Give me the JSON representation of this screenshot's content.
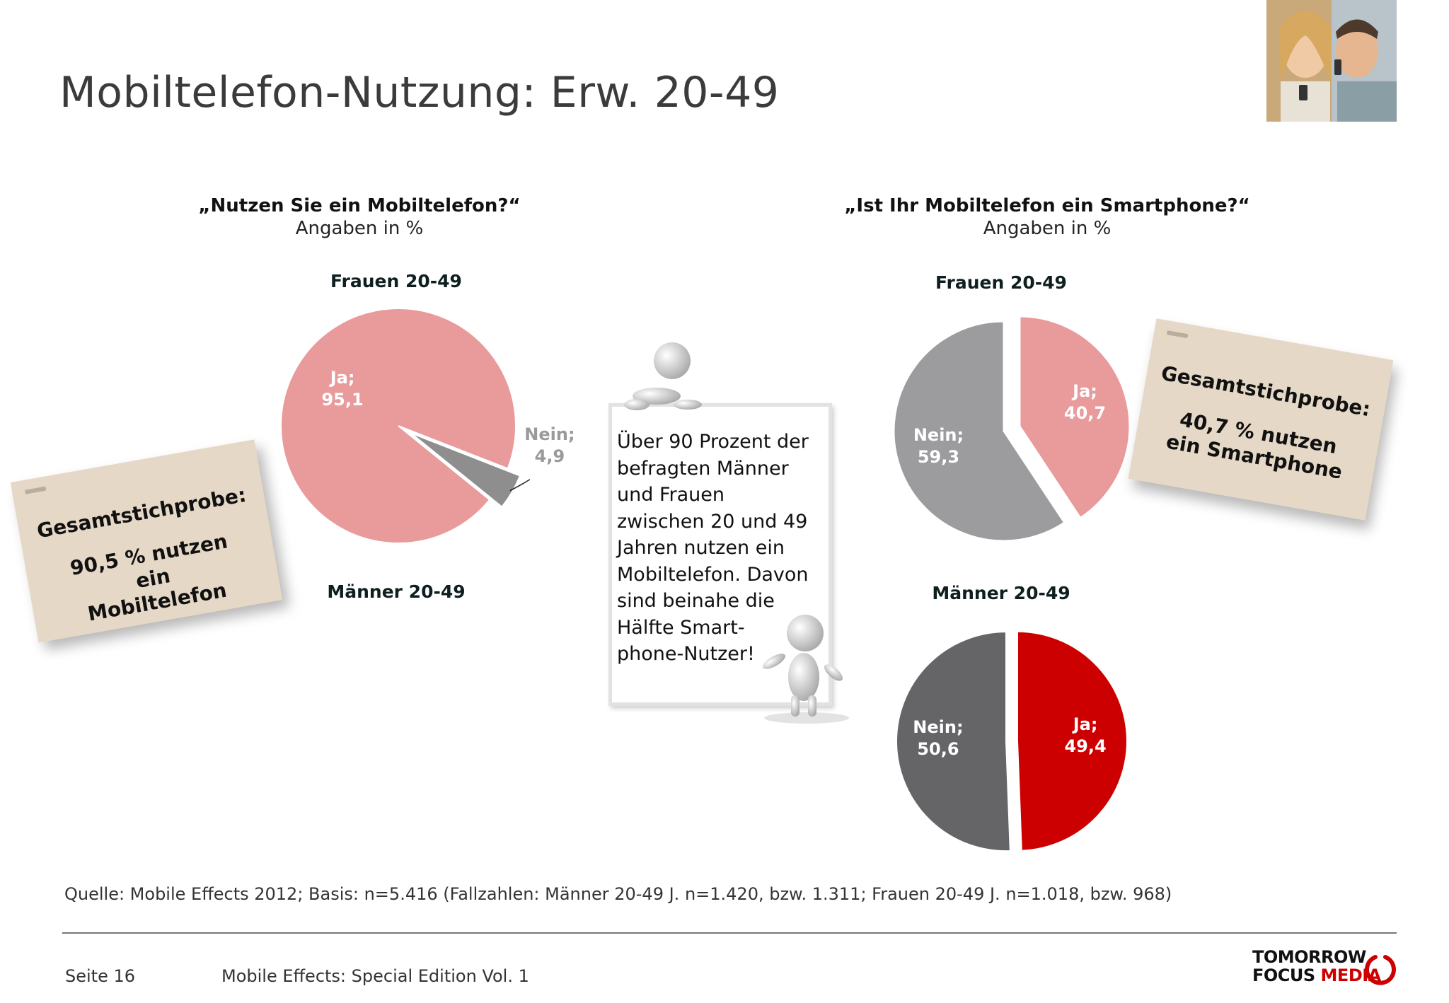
{
  "slide": {
    "title": "Mobiltelefon-Nutzung: Erw. 20-49",
    "photo_icon": "couple-with-phones-photo"
  },
  "left_panel": {
    "question": "„Nutzen Sie ein Mobiltelefon?“",
    "unit_note": "Angaben in %",
    "note": {
      "heading": "Gesamtstichprobe:",
      "body": "90,5 % nutzen ein Mobiltelefon"
    }
  },
  "right_panel": {
    "question": "„Ist Ihr Mobiltelefon ein Smartphone?“",
    "unit_note": "Angaben in %",
    "note": {
      "heading": "Gesamtstichprobe:",
      "body": "40,7 % nutzen ein Smartphone"
    }
  },
  "board": {
    "text": "Über 90 Prozent der\nbefragten Männer\nund Frauen\nzwischen 20 und 49\nJahren nutzen ein\nMobiltelefon. Davon\nsind beinahe die\nHälfte Smart-\nphone-Nutzer!",
    "figure_icon": "3d-figure-icon"
  },
  "chart_data": [
    {
      "id": "mobile-use-women",
      "type": "pie",
      "group_label": "Frauen 20-49",
      "slices": [
        {
          "label": "Ja",
          "display": "Ja;",
          "value": 95.1,
          "value_text": "95,1",
          "color": "#e99a9b"
        },
        {
          "label": "Nein",
          "display": "Nein;",
          "value": 4.9,
          "value_text": "4,9",
          "color": "#8e8e8e"
        }
      ]
    },
    {
      "id": "mobile-use-men",
      "type": "pie",
      "group_label": "Männer 20-49",
      "slices": []
    },
    {
      "id": "smartphone-women",
      "type": "pie",
      "group_label": "Frauen 20-49",
      "slices": [
        {
          "label": "Ja",
          "display": "Ja;",
          "value": 40.7,
          "value_text": "40,7",
          "color": "#e99a9b"
        },
        {
          "label": "Nein",
          "display": "Nein;",
          "value": 59.3,
          "value_text": "59,3",
          "color": "#9c9b9e"
        }
      ]
    },
    {
      "id": "smartphone-men",
      "type": "pie",
      "group_label": "Männer 20-49",
      "slices": [
        {
          "label": "Ja",
          "display": "Ja;",
          "value": 49.4,
          "value_text": "49,4",
          "color": "#cc0000"
        },
        {
          "label": "Nein",
          "display": "Nein;",
          "value": 50.6,
          "value_text": "50,6",
          "color": "#656467"
        }
      ]
    }
  ],
  "source": "Quelle: Mobile Effects 2012; Basis: n=5.416 (Fallzahlen: Männer 20-49 J. n=1.420, bzw. 1.311; Frauen 20-49 J. n=1.018, bzw. 968)",
  "footer": {
    "page": "Seite 16",
    "edition": "Mobile Effects: Special Edition Vol. 1",
    "logo_line1": "TOMORROW",
    "logo_line2a": "FOCUS",
    "logo_line2b": "MEDIA",
    "logo_color": "#cc0000"
  }
}
